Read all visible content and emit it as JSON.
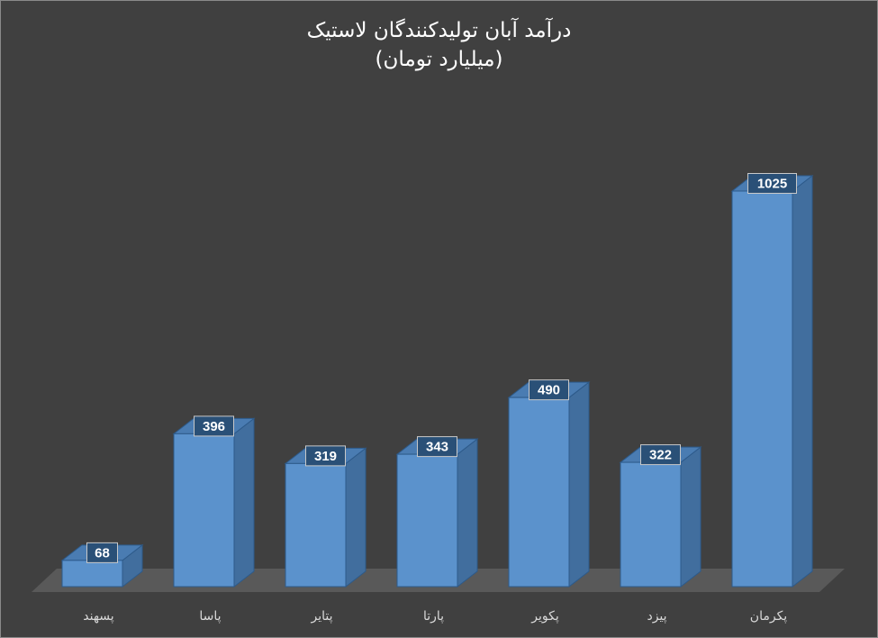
{
  "chart_data": {
    "type": "bar",
    "title": "درآمد آبان تولیدکنندگان لاستیک",
    "subtitle": "(میلیارد تومان)",
    "categories": [
      "پسهند",
      "پاسا",
      "پتایر",
      "پارتا",
      "پکویر",
      "پیزد",
      "پکرمان"
    ],
    "series": [
      {
        "values": [
          68,
          396,
          319,
          343,
          490,
          322,
          1025
        ]
      }
    ],
    "ylim": [
      0,
      1025
    ],
    "grid": false,
    "legend": "none",
    "colors": {
      "background": "#404040",
      "floor": "#595959",
      "bar_front": "#5b92cc",
      "bar_side": "#416e9e",
      "bar_top": "#4a7cb2",
      "bar_edge": "#2d5a8a",
      "label_box": "#2a5077",
      "label_border": "#c8c8c8",
      "text": "#ffffff",
      "axis_text": "#d9d9d9"
    }
  }
}
